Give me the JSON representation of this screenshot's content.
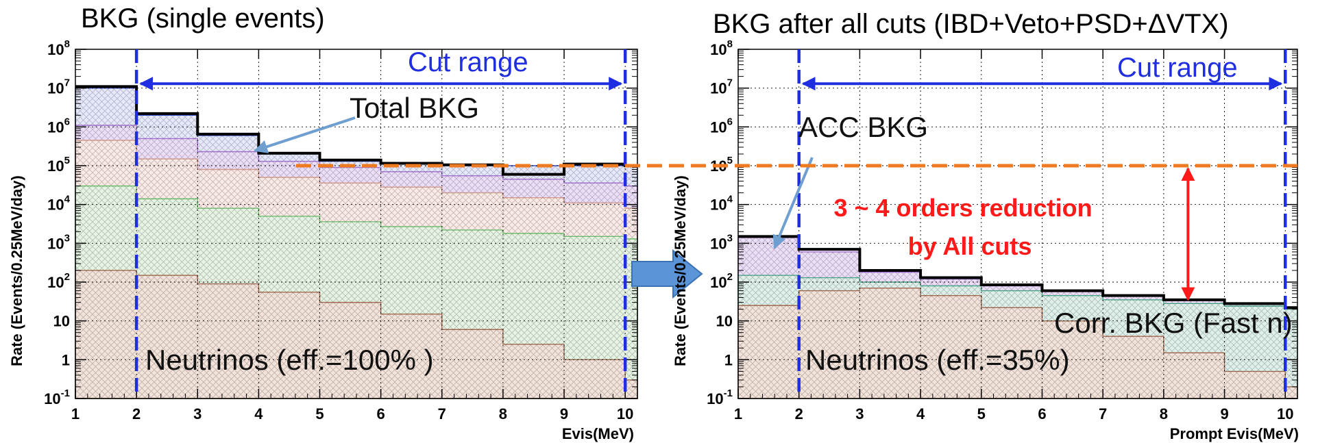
{
  "chart_data": [
    {
      "type": "area",
      "title": "BKG (single events)",
      "xlabel": "Evis(MeV)",
      "ylabel": "Rate (Events/0.25MeV/day)",
      "log_y": true,
      "xlim": [
        1,
        10.2
      ],
      "ylim": [
        0.1,
        100000000
      ],
      "grid": true,
      "x_ticks": [
        "1",
        "2",
        "3",
        "4",
        "5",
        "6",
        "7",
        "8",
        "9",
        "10"
      ],
      "y_ticks": [
        "10^-1",
        "1",
        "10",
        "10^2",
        "10^3",
        "10^4",
        "10^5",
        "10^6",
        "10^7",
        "10^8"
      ],
      "cut_range": {
        "label": "Cut range",
        "from": 2,
        "to": 10
      },
      "annotations": [
        "Total BKG",
        "Neutrinos (eff.=100% )"
      ],
      "series": [
        {
          "color": "#a06a50",
          "fill": "#f3e3da",
          "x": [
            1.0,
            2.0,
            3.0,
            4.0,
            5.0,
            6.0,
            7.0,
            8.0,
            9.0,
            10.0
          ],
          "y": [
            200,
            150,
            90,
            55,
            30,
            15,
            6,
            2.5,
            1,
            0.3
          ]
        },
        {
          "color": "#6fbf6f",
          "fill": "#e6f4e3",
          "x": [
            1.0,
            2.0,
            3.0,
            4.0,
            5.0,
            6.0,
            7.0,
            8.0,
            9.0,
            10.0
          ],
          "y": [
            30000,
            14000,
            8000,
            5000,
            3600,
            2700,
            2200,
            1800,
            1500,
            1300
          ]
        },
        {
          "color": "#d49a8c",
          "fill": "#fbeae6",
          "x": [
            1.0,
            2.0,
            3.0,
            4.0,
            5.0,
            6.0,
            7.0,
            8.0,
            9.0,
            10.0
          ],
          "y": [
            450000,
            150000,
            80000,
            50000,
            36000,
            28000,
            20000,
            15000,
            11000,
            8000
          ]
        },
        {
          "color": "#a070d0",
          "fill": "#ecdef8",
          "x": [
            1.0,
            2.0,
            3.0,
            4.0,
            5.0,
            6.0,
            7.0,
            8.0,
            9.0,
            10.0
          ],
          "y": [
            1100000,
            500000,
            230000,
            130000,
            90000,
            70000,
            55000,
            45000,
            36000,
            30000
          ]
        },
        {
          "color": "#3050d0",
          "fill": "#e6e8fb",
          "x": [
            1.0,
            2.0,
            3.0,
            4.0,
            5.0,
            6.0,
            7.0,
            8.0,
            9.0,
            10.0
          ],
          "y": [
            10000000,
            2000000,
            600000,
            200000,
            130000,
            110000,
            100000,
            100000,
            100000,
            100000
          ]
        },
        {
          "color": "#000000",
          "fill": "none",
          "x": [
            1.0,
            2.0,
            3.0,
            4.0,
            5.0,
            6.0,
            7.0,
            8.0,
            9.0,
            10.0
          ],
          "y": [
            11000000,
            2200000,
            650000,
            210000,
            140000,
            115000,
            105000,
            60000,
            110000,
            100000
          ]
        }
      ]
    },
    {
      "type": "area",
      "title": "BKG after all cuts (IBD+Veto+PSD+ΔVTX)",
      "xlabel": "Prompt Evis(MeV)",
      "ylabel": "Rate (Events/0.25MeV/day)",
      "log_y": true,
      "xlim": [
        1,
        10.2
      ],
      "ylim": [
        0.1,
        100000000
      ],
      "grid": true,
      "x_ticks": [
        "1",
        "2",
        "3",
        "4",
        "5",
        "6",
        "7",
        "8",
        "9",
        "10"
      ],
      "y_ticks": [
        "10^-1",
        "1",
        "10",
        "10^2",
        "10^3",
        "10^4",
        "10^5",
        "10^6",
        "10^7",
        "10^8"
      ],
      "cut_range": {
        "label": "Cut range",
        "from": 2,
        "to": 10
      },
      "annotations": [
        "ACC BKG",
        "Corr. BKG (Fast n)",
        "Neutrinos (eff.=35%)"
      ],
      "series": [
        {
          "color": "#a06a50",
          "fill": "#f3e3da",
          "x": [
            1.0,
            2.0,
            3.0,
            4.0,
            5.0,
            6.0,
            7.0,
            8.0,
            9.0,
            10.0
          ],
          "y": [
            25,
            60,
            70,
            45,
            22,
            10,
            4,
            1.5,
            0.5,
            0.2
          ]
        },
        {
          "color": "#4aa888",
          "fill": "#dff0ea",
          "x": [
            1.0,
            2.0,
            3.0,
            4.0,
            5.0,
            6.0,
            7.0,
            8.0,
            9.0,
            10.0
          ],
          "y": [
            150,
            130,
            100,
            80,
            60,
            45,
            35,
            28,
            24,
            20
          ]
        },
        {
          "color": "#a070d0",
          "fill": "#ecdef8",
          "x": [
            1.0,
            2.0,
            3.0,
            4.0,
            5.0,
            6.0,
            7.0,
            8.0,
            9.0,
            10.0
          ],
          "y": [
            1400,
            600,
            180,
            120,
            80,
            60,
            45,
            35,
            28,
            22
          ]
        },
        {
          "color": "#000000",
          "fill": "none",
          "x": [
            1.0,
            2.0,
            3.0,
            4.0,
            5.0,
            6.0,
            7.0,
            8.0,
            9.0,
            10.0
          ],
          "y": [
            1500,
            700,
            200,
            130,
            85,
            60,
            45,
            35,
            28,
            22
          ]
        }
      ]
    }
  ],
  "annotations": {
    "reduction_line1": "3 ~ 4 orders reduction",
    "reduction_line2": "by All cuts"
  },
  "colors": {
    "cut_line": "#1f2ee0",
    "threshold_line": "#ee7a22",
    "reduction_arrow": "#ff1a1a",
    "pointer_arrow": "#6f9fd0",
    "block_arrow": "#5b95d8"
  },
  "reference_level": 100000
}
